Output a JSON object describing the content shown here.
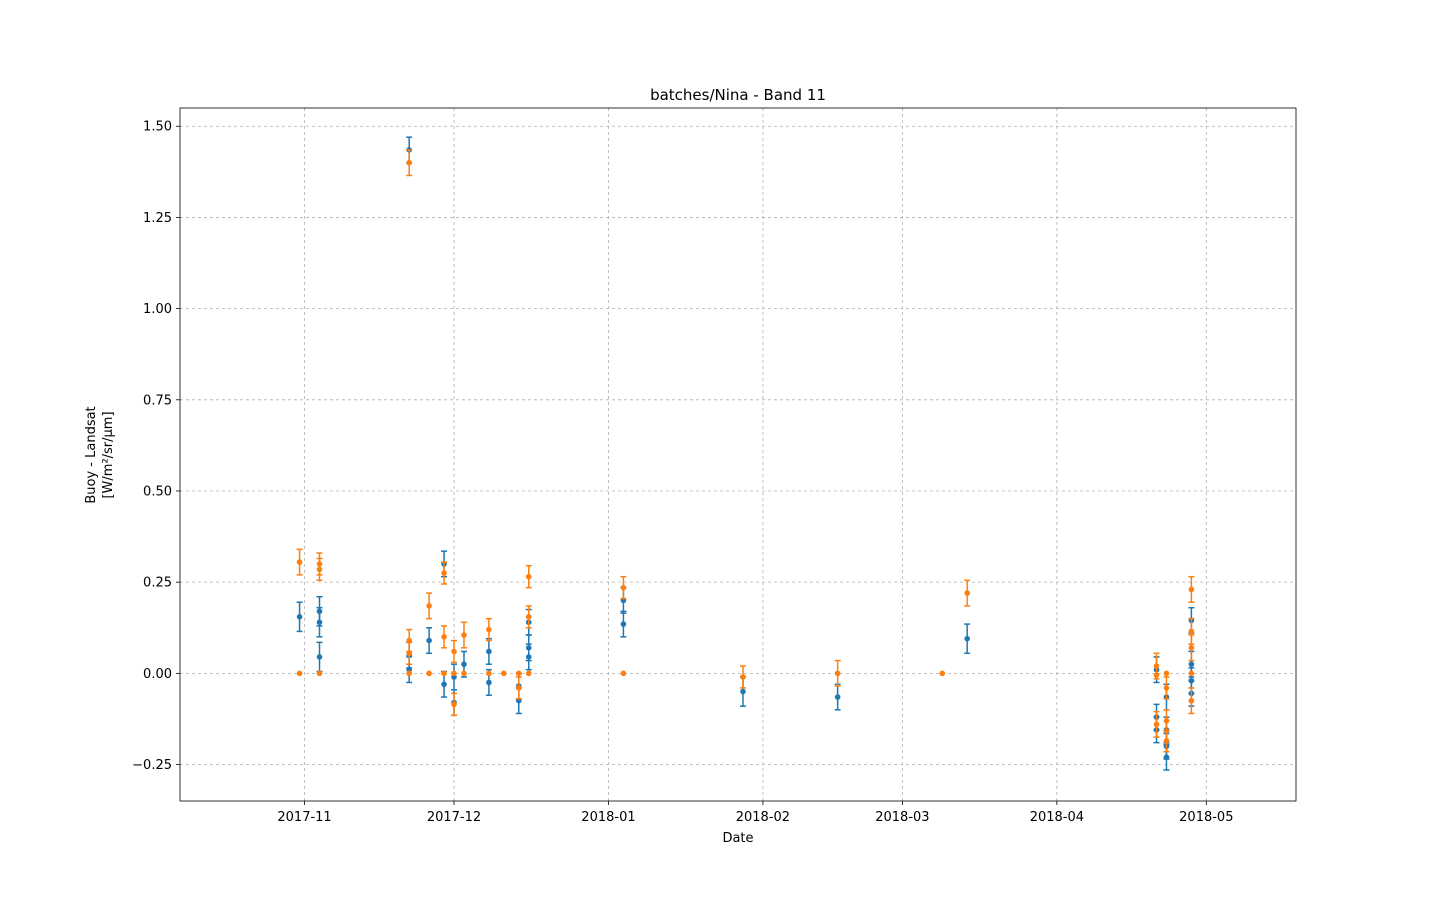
{
  "chart_data": {
    "type": "scatter",
    "title": "batches/Nina - Band 11",
    "xlabel": "Date",
    "ylabel_line1": "Buoy - Landsat",
    "ylabel_line2": "[W/m²/sr/μm]",
    "x_is_date": true,
    "xlim": [
      "2017-10-07",
      "2018-05-19"
    ],
    "ylim": [
      -0.35,
      1.55
    ],
    "grid": true,
    "x_ticks": [
      {
        "date": "2017-11-01",
        "label": "2017-11"
      },
      {
        "date": "2017-12-01",
        "label": "2017-12"
      },
      {
        "date": "2018-01-01",
        "label": "2018-01"
      },
      {
        "date": "2018-02-01",
        "label": "2018-02"
      },
      {
        "date": "2018-03-01",
        "label": "2018-03"
      },
      {
        "date": "2018-04-01",
        "label": "2018-04"
      },
      {
        "date": "2018-05-01",
        "label": "2018-05"
      }
    ],
    "y_ticks": [
      {
        "value": -0.25,
        "label": "−0.25"
      },
      {
        "value": 0.0,
        "label": "0.00"
      },
      {
        "value": 0.25,
        "label": "0.25"
      },
      {
        "value": 0.5,
        "label": "0.50"
      },
      {
        "value": 0.75,
        "label": "0.75"
      },
      {
        "value": 1.0,
        "label": "1.00"
      },
      {
        "value": 1.25,
        "label": "1.25"
      },
      {
        "value": 1.5,
        "label": "1.50"
      }
    ],
    "series": [
      {
        "color": "#1f77b4",
        "points": [
          {
            "x": "2017-10-31",
            "y": 0.155,
            "err": 0.04
          },
          {
            "x": "2017-11-04",
            "y": 0.17,
            "err": 0.04
          },
          {
            "x": "2017-11-04",
            "y": 0.14,
            "err": 0.04
          },
          {
            "x": "2017-11-04",
            "y": 0.045,
            "err": 0.04
          },
          {
            "x": "2017-11-22",
            "y": 1.435,
            "err": 0.035
          },
          {
            "x": "2017-11-22",
            "y": 0.01,
            "err": 0.035
          },
          {
            "x": "2017-11-22",
            "y": 0.05,
            "err": 0.035
          },
          {
            "x": "2017-11-26",
            "y": 0.09,
            "err": 0.035
          },
          {
            "x": "2017-11-29",
            "y": 0.3,
            "err": 0.035
          },
          {
            "x": "2017-11-29",
            "y": -0.03,
            "err": 0.035
          },
          {
            "x": "2017-12-01",
            "y": -0.08,
            "err": 0.035
          },
          {
            "x": "2017-12-01",
            "y": -0.01,
            "err": 0.035
          },
          {
            "x": "2017-12-03",
            "y": 0.025,
            "err": 0.035
          },
          {
            "x": "2017-12-08",
            "y": 0.06,
            "err": 0.035
          },
          {
            "x": "2017-12-08",
            "y": -0.025,
            "err": 0.035
          },
          {
            "x": "2017-12-14",
            "y": -0.035,
            "err": 0.035
          },
          {
            "x": "2017-12-14",
            "y": -0.075,
            "err": 0.035
          },
          {
            "x": "2017-12-16",
            "y": 0.14,
            "err": 0.035
          },
          {
            "x": "2017-12-16",
            "y": 0.07,
            "err": 0.035
          },
          {
            "x": "2017-12-16",
            "y": 0.045,
            "err": 0.035
          },
          {
            "x": "2018-01-04",
            "y": 0.2,
            "err": 0.035
          },
          {
            "x": "2018-01-04",
            "y": 0.135,
            "err": 0.035
          },
          {
            "x": "2018-01-28",
            "y": -0.05,
            "err": 0.04
          },
          {
            "x": "2018-02-16",
            "y": -0.065,
            "err": 0.035
          },
          {
            "x": "2018-03-14",
            "y": 0.095,
            "err": 0.04
          },
          {
            "x": "2018-04-21",
            "y": 0.01,
            "err": 0.035
          },
          {
            "x": "2018-04-21",
            "y": -0.12,
            "err": 0.035
          },
          {
            "x": "2018-04-21",
            "y": -0.155,
            "err": 0.035
          },
          {
            "x": "2018-04-23",
            "y": -0.065,
            "err": 0.035
          },
          {
            "x": "2018-04-23",
            "y": -0.155,
            "err": 0.035
          },
          {
            "x": "2018-04-23",
            "y": -0.2,
            "err": 0.035
          },
          {
            "x": "2018-04-23",
            "y": -0.23,
            "err": 0.035
          },
          {
            "x": "2018-04-28",
            "y": 0.145,
            "err": 0.035
          },
          {
            "x": "2018-04-28",
            "y": 0.025,
            "err": 0.035
          },
          {
            "x": "2018-04-28",
            "y": -0.02,
            "err": 0.035
          },
          {
            "x": "2018-04-28",
            "y": -0.055,
            "err": 0.035
          }
        ]
      },
      {
        "color": "#ff7f0e",
        "points": [
          {
            "x": "2017-10-31",
            "y": 0.305,
            "err": 0.035
          },
          {
            "x": "2017-10-31",
            "y": 0.0,
            "err": 0.0
          },
          {
            "x": "2017-11-04",
            "y": 0.3,
            "err": 0.03
          },
          {
            "x": "2017-11-04",
            "y": 0.285,
            "err": 0.03
          },
          {
            "x": "2017-11-04",
            "y": 0.0,
            "err": 0.0
          },
          {
            "x": "2017-11-22",
            "y": 1.4,
            "err": 0.035
          },
          {
            "x": "2017-11-22",
            "y": 0.09,
            "err": 0.03
          },
          {
            "x": "2017-11-22",
            "y": 0.055,
            "err": 0.03
          },
          {
            "x": "2017-11-22",
            "y": 0.0,
            "err": 0.0
          },
          {
            "x": "2017-11-26",
            "y": 0.185,
            "err": 0.035
          },
          {
            "x": "2017-11-26",
            "y": 0.0,
            "err": 0.0
          },
          {
            "x": "2017-11-29",
            "y": 0.275,
            "err": 0.03
          },
          {
            "x": "2017-11-29",
            "y": 0.1,
            "err": 0.03
          },
          {
            "x": "2017-11-29",
            "y": 0.0,
            "err": 0.0
          },
          {
            "x": "2017-12-01",
            "y": 0.06,
            "err": 0.03
          },
          {
            "x": "2017-12-01",
            "y": -0.085,
            "err": 0.03
          },
          {
            "x": "2017-12-01",
            "y": 0.0,
            "err": 0.0
          },
          {
            "x": "2017-12-03",
            "y": 0.105,
            "err": 0.035
          },
          {
            "x": "2017-12-03",
            "y": 0.0,
            "err": 0.0
          },
          {
            "x": "2017-12-08",
            "y": 0.12,
            "err": 0.03
          },
          {
            "x": "2017-12-08",
            "y": 0.0,
            "err": 0.0
          },
          {
            "x": "2017-12-11",
            "y": 0.0,
            "err": 0.0
          },
          {
            "x": "2017-12-14",
            "y": 0.0,
            "err": 0.0
          },
          {
            "x": "2017-12-14",
            "y": -0.04,
            "err": 0.03
          },
          {
            "x": "2017-12-16",
            "y": 0.265,
            "err": 0.03
          },
          {
            "x": "2017-12-16",
            "y": 0.155,
            "err": 0.03
          },
          {
            "x": "2017-12-16",
            "y": 0.0,
            "err": 0.0
          },
          {
            "x": "2018-01-04",
            "y": 0.235,
            "err": 0.03
          },
          {
            "x": "2018-01-04",
            "y": 0.0,
            "err": 0.0
          },
          {
            "x": "2018-01-28",
            "y": -0.01,
            "err": 0.03
          },
          {
            "x": "2018-02-16",
            "y": 0.0,
            "err": 0.035
          },
          {
            "x": "2018-03-09",
            "y": 0.0,
            "err": 0.0
          },
          {
            "x": "2018-03-14",
            "y": 0.22,
            "err": 0.035
          },
          {
            "x": "2018-04-21",
            "y": 0.02,
            "err": 0.035
          },
          {
            "x": "2018-04-21",
            "y": -0.005,
            "err": 0.0
          },
          {
            "x": "2018-04-21",
            "y": -0.14,
            "err": 0.035
          },
          {
            "x": "2018-04-23",
            "y": 0.0,
            "err": 0.0
          },
          {
            "x": "2018-04-23",
            "y": -0.04,
            "err": 0.03
          },
          {
            "x": "2018-04-23",
            "y": -0.13,
            "err": 0.03
          },
          {
            "x": "2018-04-23",
            "y": -0.185,
            "err": 0.03
          },
          {
            "x": "2018-04-28",
            "y": 0.23,
            "err": 0.035
          },
          {
            "x": "2018-04-28",
            "y": 0.115,
            "err": 0.035
          },
          {
            "x": "2018-04-28",
            "y": 0.07,
            "err": 0.035
          },
          {
            "x": "2018-04-28",
            "y": 0.0,
            "err": 0.0
          },
          {
            "x": "2018-04-28",
            "y": -0.075,
            "err": 0.035
          }
        ]
      }
    ]
  }
}
